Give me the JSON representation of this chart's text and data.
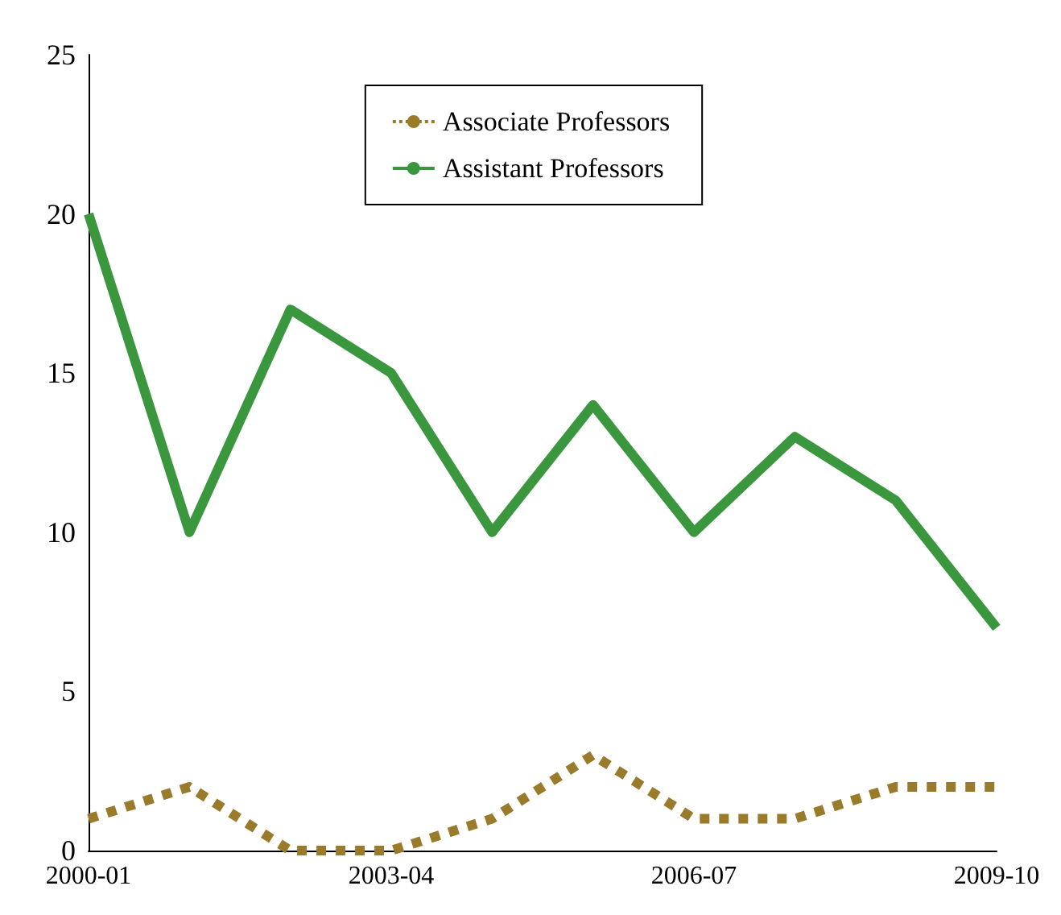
{
  "chart_data": {
    "type": "line",
    "categories": [
      "2000-01",
      null,
      null,
      "2003-04",
      null,
      null,
      "2006-07",
      null,
      null,
      "2009-10"
    ],
    "series": [
      {
        "name": "Associate Professors",
        "color": "#9a7b2c",
        "line_style": "dotted",
        "values": [
          1,
          2,
          0,
          0,
          1,
          3,
          1,
          1,
          2,
          2
        ]
      },
      {
        "name": "Assistant Professors",
        "color": "#3a973e",
        "line_style": "solid",
        "values": [
          20,
          10,
          17,
          15,
          10,
          14,
          10,
          13,
          11,
          7
        ]
      }
    ],
    "ylim": [
      0,
      25
    ],
    "yticks": [
      0,
      5,
      10,
      15,
      20,
      25
    ],
    "grid": false,
    "legend": "top",
    "marker": "none"
  }
}
